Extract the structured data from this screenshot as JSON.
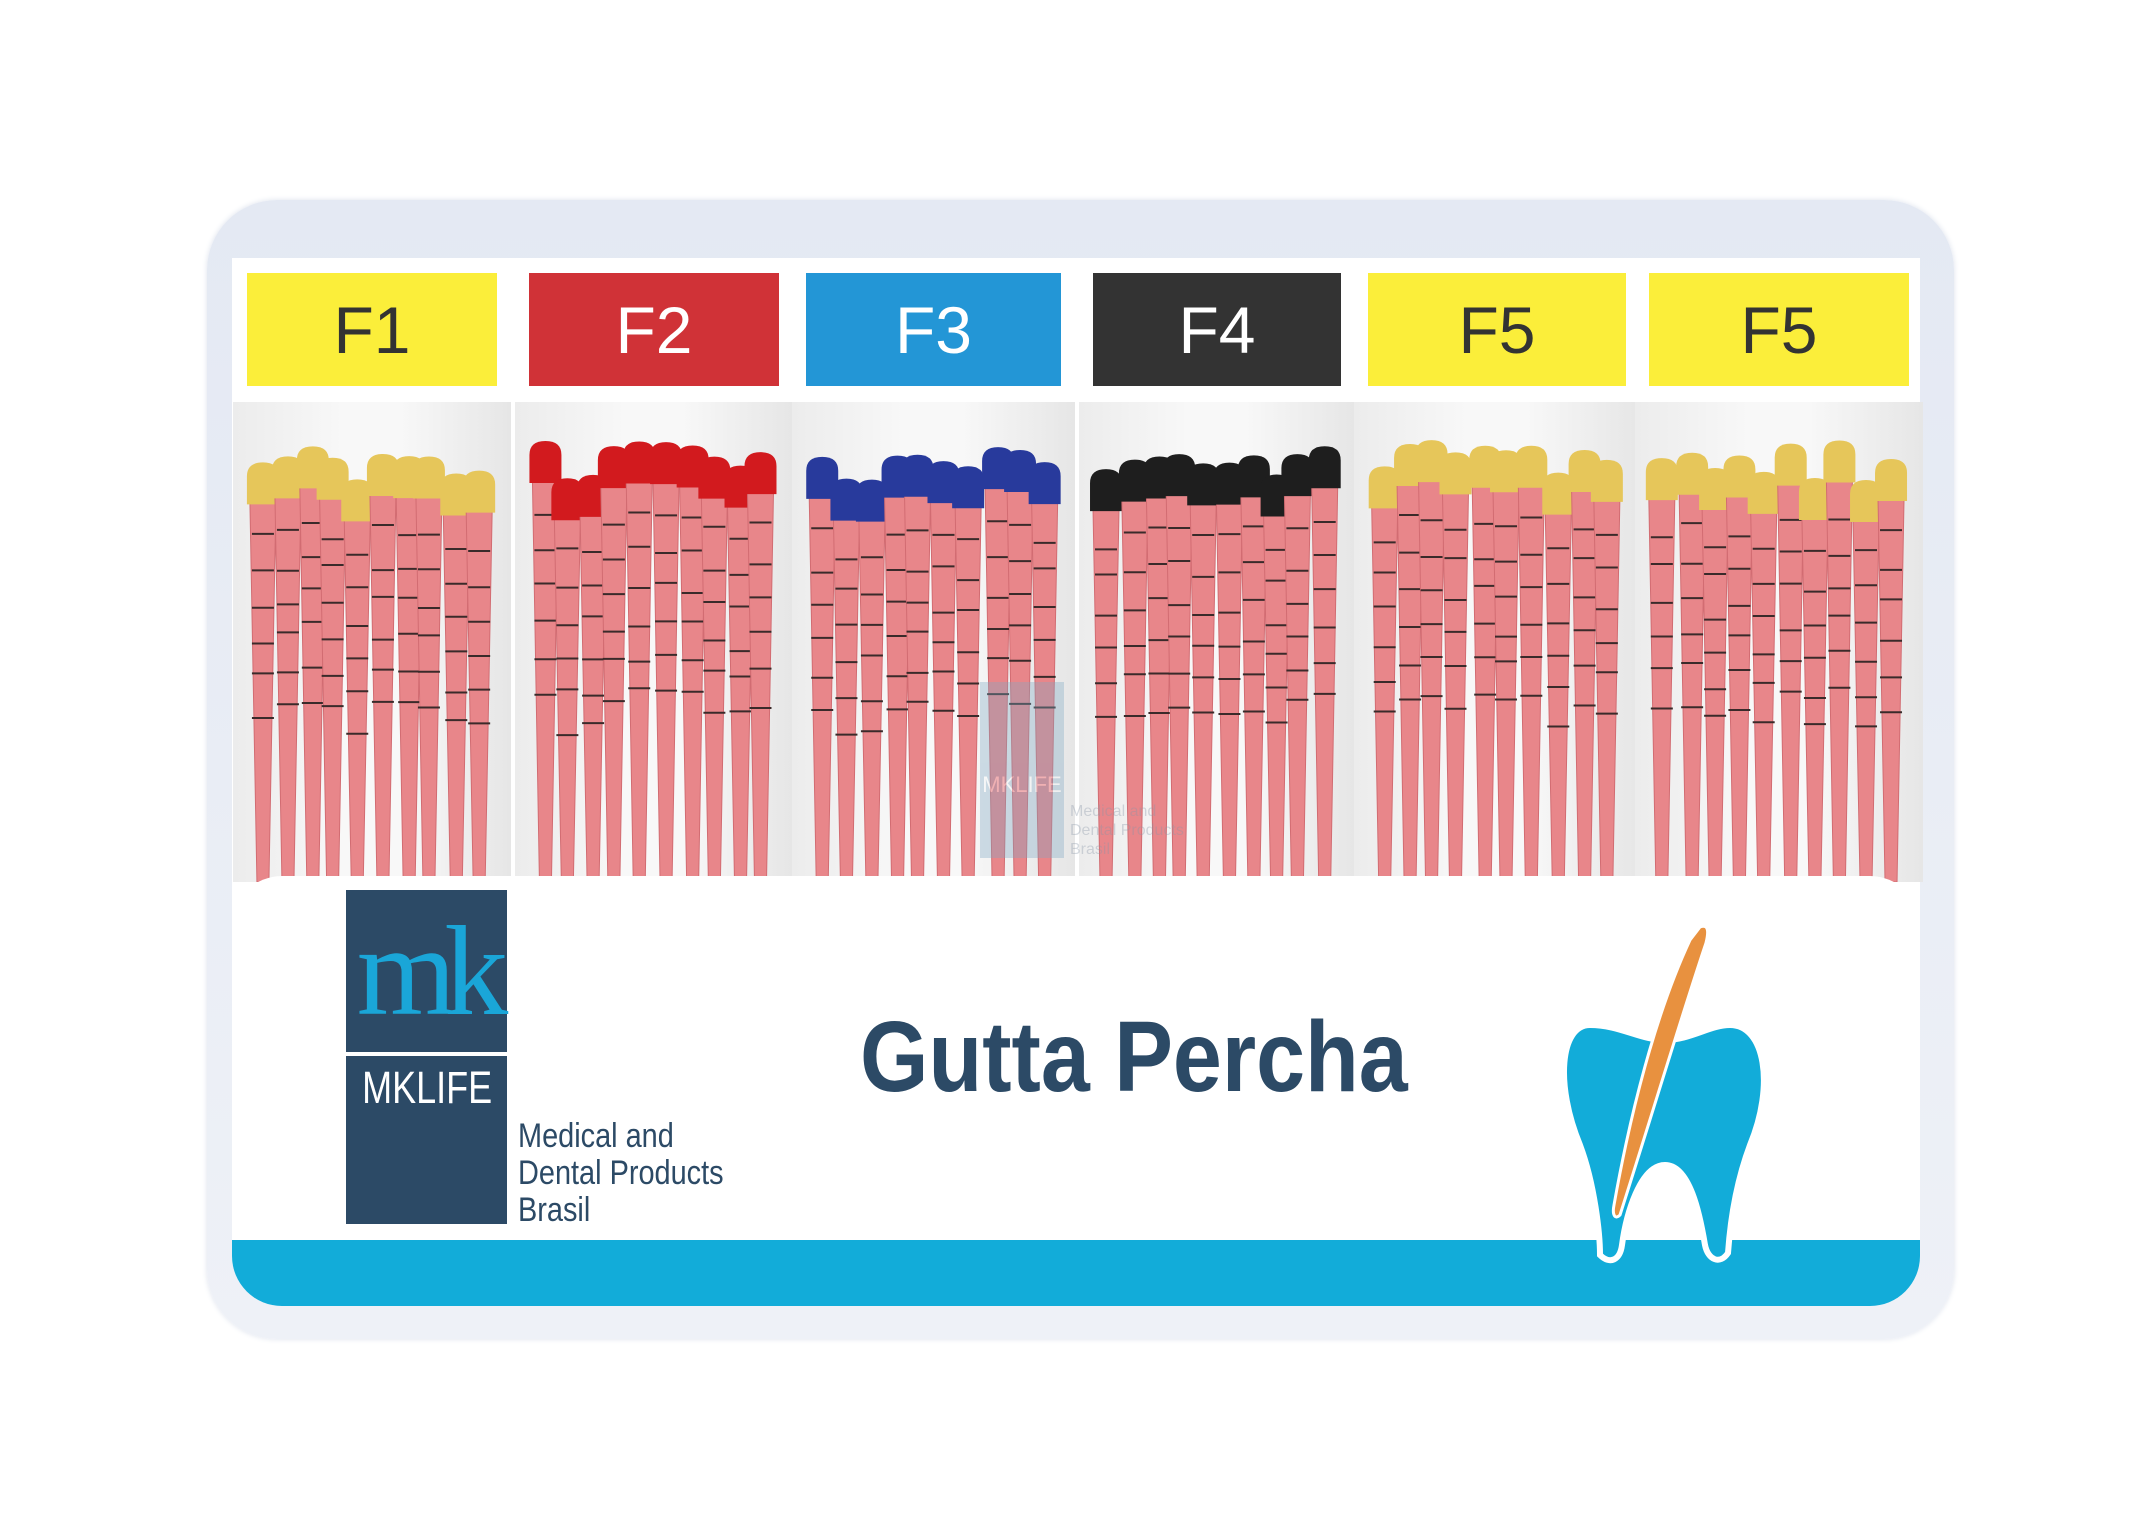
{
  "product": {
    "title": "Gutta Percha",
    "labels": [
      {
        "text": "F1",
        "bg": "#fbee3a",
        "fg": "#333333",
        "tip": "#e6c65a"
      },
      {
        "text": "F2",
        "bg": "#d03237",
        "fg": "#ffffff",
        "tip": "#d21a1e"
      },
      {
        "text": "F3",
        "bg": "#2396d6",
        "fg": "#ffffff",
        "tip": "#283a9c"
      },
      {
        "text": "F4",
        "bg": "#333333",
        "fg": "#ffffff",
        "tip": "#1e1e1e"
      },
      {
        "text": "F5",
        "bg": "#fbee3a",
        "fg": "#333333",
        "tip": "#e6c65a"
      },
      {
        "text": "F5",
        "bg": "#fbee3a",
        "fg": "#333333",
        "tip": "#e6c65a"
      }
    ],
    "stick_color": "#e8868a"
  },
  "brand": {
    "monogram": "mk",
    "name": "MKLIFE",
    "tagline": [
      "Medical and",
      "Dental Products",
      "Brasil"
    ],
    "navy": "#2c4a66",
    "cyan": "#12acd9"
  },
  "watermark": {
    "name": "MKLIFE",
    "tagline": [
      "Medical and",
      "Dental Products",
      "Brasil"
    ]
  }
}
